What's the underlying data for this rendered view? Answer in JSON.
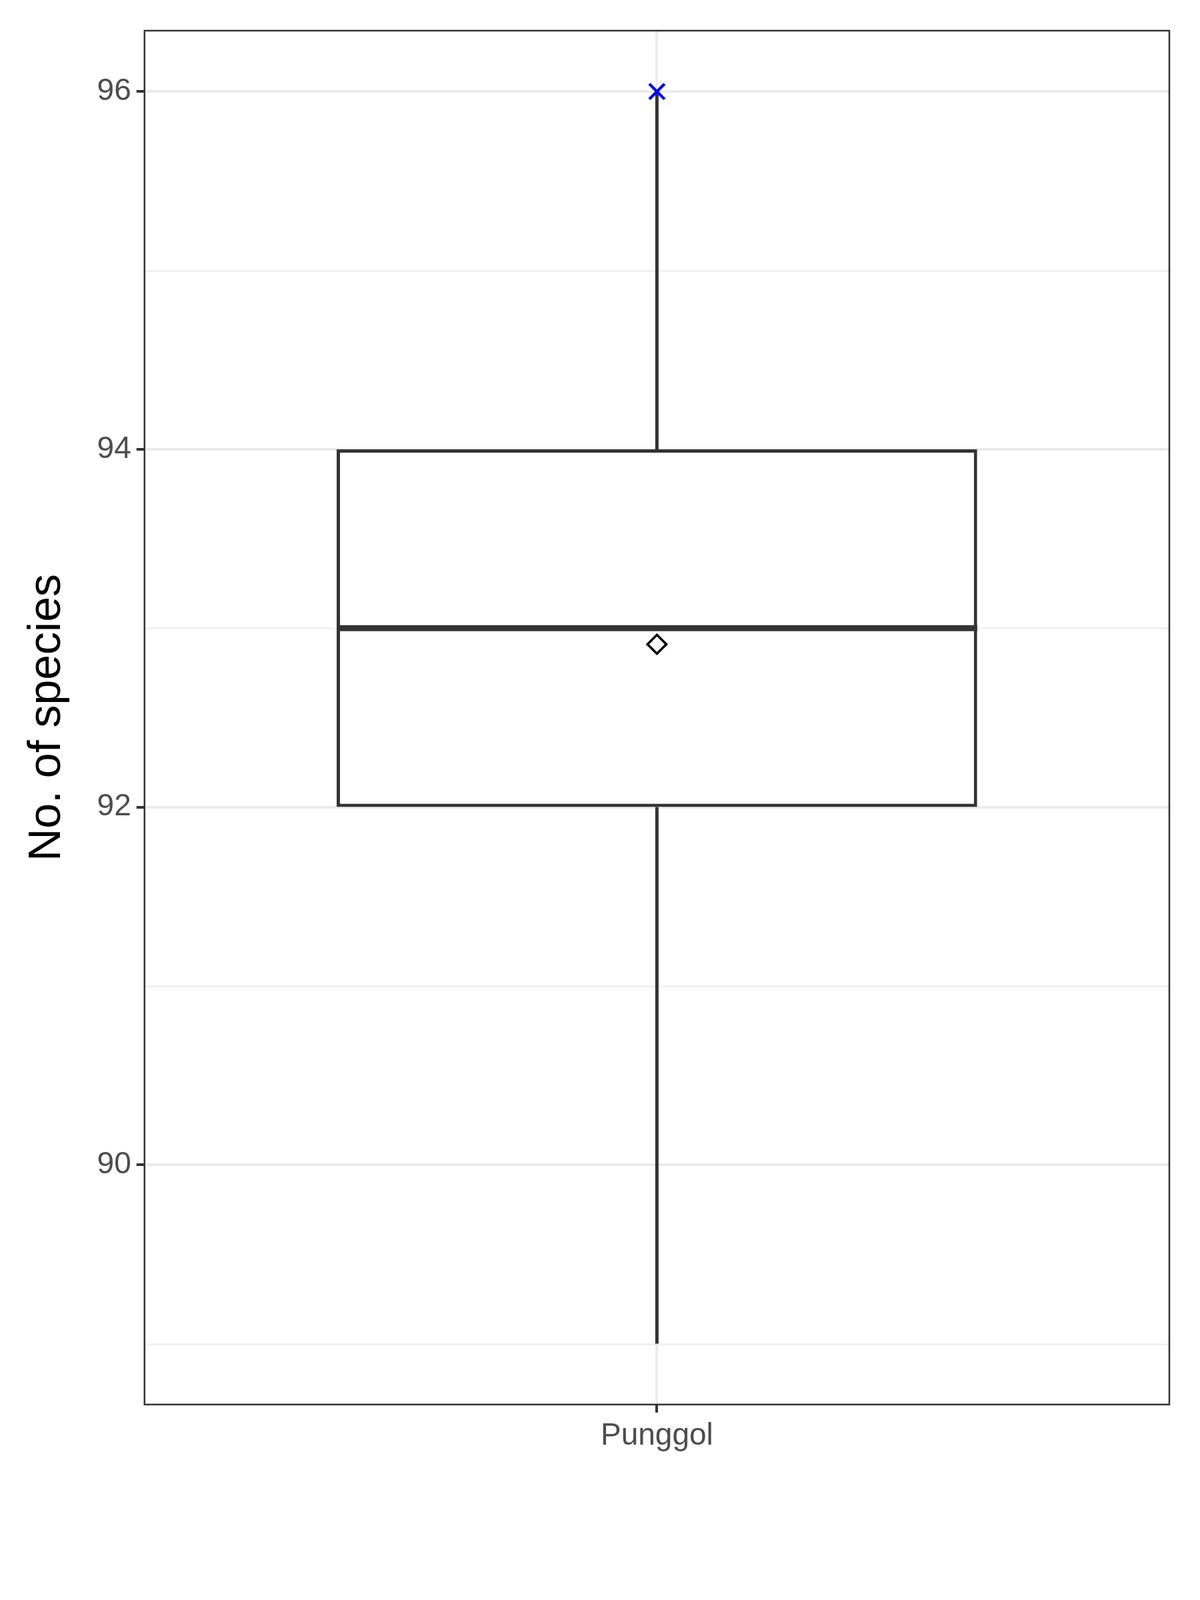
{
  "chart_data": {
    "type": "box",
    "categories": [
      "Punggol"
    ],
    "y_label": "No. of species",
    "boxes": [
      {
        "whisker_low": 89,
        "q1": 92,
        "median": 93,
        "q3": 94,
        "whisker_high": 96,
        "mean": {
          "value": 92.91,
          "marker": "diamond",
          "color": "#000000"
        },
        "points": [
          {
            "value": 96,
            "marker": "cross",
            "color": "#0000ff"
          }
        ]
      }
    ],
    "color": "#333333",
    "ylim": [
      88.66,
      96.34
    ],
    "yticks": [
      90,
      92,
      94,
      96
    ],
    "grid": true
  }
}
